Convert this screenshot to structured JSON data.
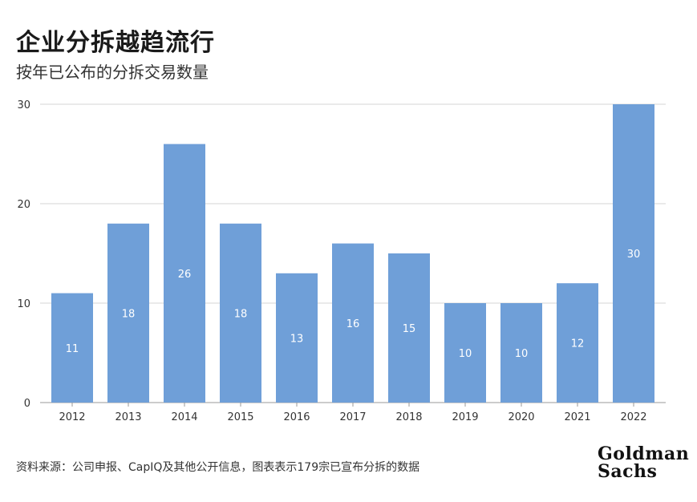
{
  "header": {
    "title": "企业分拆越趋流行",
    "subtitle": "按年已公布的分拆交易数量"
  },
  "footer": {
    "source": "资料来源：公司申报、CapIQ及其他公开信息，图表表示179宗已宣布分拆的数据"
  },
  "logo": {
    "line1": "Goldman",
    "line2": "Sachs"
  },
  "chart_data": {
    "type": "bar",
    "title": "企业分拆越趋流行",
    "subtitle": "按年已公布的分拆交易数量",
    "categories": [
      "2012",
      "2013",
      "2014",
      "2015",
      "2016",
      "2017",
      "2018",
      "2019",
      "2020",
      "2021",
      "2022"
    ],
    "values": [
      11,
      18,
      26,
      18,
      13,
      16,
      15,
      10,
      10,
      12,
      30
    ],
    "ylim": [
      0,
      30
    ],
    "yticks": [
      0,
      10,
      20,
      30
    ],
    "xlabel": "",
    "ylabel": "",
    "grid": true,
    "bar_color": "#6f9fd8",
    "label_color": "#ffffff"
  }
}
